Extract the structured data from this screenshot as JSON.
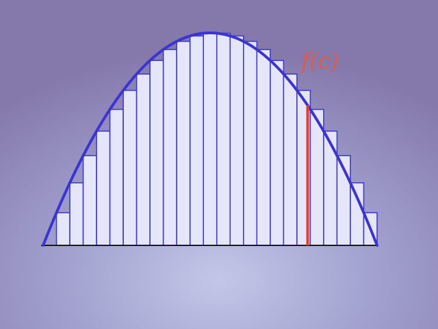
{
  "diagram": {
    "type": "riemann-sum",
    "function": "parabola",
    "rectangle_count": 25,
    "sample_point": "left-endpoint",
    "highlighted_rectangle_index": 19,
    "labels": {
      "sample_value": "f(c)"
    },
    "colors": {
      "curve": "#3a33d6",
      "rectangle_stroke": "#3f3ad0",
      "rectangle_fill": "#e6e6fa",
      "highlight": "#ee3a22",
      "label": "#e05a48",
      "axis": "#1a1a1a"
    }
  }
}
